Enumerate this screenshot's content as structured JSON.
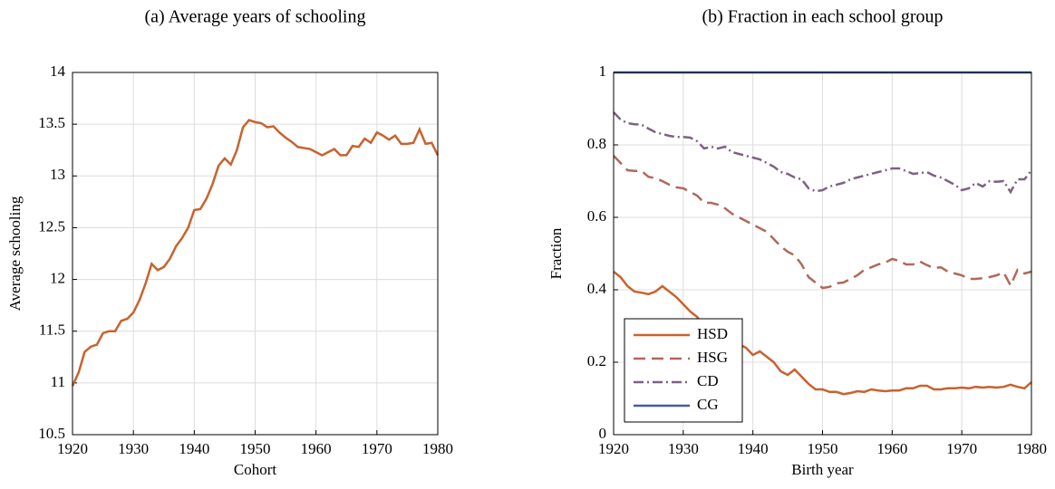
{
  "chart_data": [
    {
      "type": "line",
      "title": "(a) Average years of schooling",
      "xlabel": "Cohort",
      "ylabel": "Average schooling",
      "x": [
        1920,
        1921,
        1922,
        1923,
        1924,
        1925,
        1926,
        1927,
        1928,
        1929,
        1930,
        1931,
        1932,
        1933,
        1934,
        1935,
        1936,
        1937,
        1938,
        1939,
        1940,
        1941,
        1942,
        1943,
        1944,
        1945,
        1946,
        1947,
        1948,
        1949,
        1950,
        1951,
        1952,
        1953,
        1954,
        1955,
        1956,
        1957,
        1958,
        1959,
        1960,
        1961,
        1962,
        1963,
        1964,
        1965,
        1966,
        1967,
        1968,
        1969,
        1970,
        1971,
        1972,
        1973,
        1974,
        1975,
        1976,
        1977,
        1978,
        1979,
        1980
      ],
      "series": [
        {
          "color": "#c8622e",
          "dash": "solid",
          "values": [
            10.97,
            11.1,
            11.3,
            11.35,
            11.37,
            11.48,
            11.5,
            11.5,
            11.6,
            11.62,
            11.68,
            11.8,
            11.96,
            12.15,
            12.09,
            12.12,
            12.2,
            12.32,
            12.4,
            12.5,
            12.67,
            12.68,
            12.78,
            12.92,
            13.1,
            13.17,
            13.11,
            13.25,
            13.47,
            13.54,
            13.52,
            13.51,
            13.47,
            13.48,
            13.42,
            13.37,
            13.33,
            13.28,
            13.27,
            13.26,
            13.23,
            13.2,
            13.23,
            13.26,
            13.2,
            13.2,
            13.29,
            13.28,
            13.36,
            13.32,
            13.42,
            13.39,
            13.35,
            13.39,
            13.31,
            13.31,
            13.32,
            13.45,
            13.31,
            13.32,
            13.2
          ]
        }
      ],
      "xlim": [
        1920,
        1980
      ],
      "xticks": [
        1920,
        1930,
        1940,
        1950,
        1960,
        1970,
        1980
      ],
      "ylim": [
        10.5,
        14
      ],
      "yticks": [
        10.5,
        11,
        11.5,
        12,
        12.5,
        13,
        13.5,
        14
      ],
      "grid": true
    },
    {
      "type": "line",
      "title": "(b) Fraction in each school group",
      "xlabel": "Birth year",
      "ylabel": "Fraction",
      "x": [
        1920,
        1921,
        1922,
        1923,
        1924,
        1925,
        1926,
        1927,
        1928,
        1929,
        1930,
        1931,
        1932,
        1933,
        1934,
        1935,
        1936,
        1937,
        1938,
        1939,
        1940,
        1941,
        1942,
        1943,
        1944,
        1945,
        1946,
        1947,
        1948,
        1949,
        1950,
        1951,
        1952,
        1953,
        1954,
        1955,
        1956,
        1957,
        1958,
        1959,
        1960,
        1961,
        1962,
        1963,
        1964,
        1965,
        1966,
        1967,
        1968,
        1969,
        1970,
        1971,
        1972,
        1973,
        1974,
        1975,
        1976,
        1977,
        1978,
        1979,
        1980
      ],
      "series": [
        {
          "name": "HSD",
          "color": "#c8622e",
          "dash": "solid",
          "values": [
            0.45,
            0.435,
            0.41,
            0.395,
            0.392,
            0.388,
            0.395,
            0.41,
            0.395,
            0.38,
            0.36,
            0.34,
            0.325,
            0.3,
            0.3,
            0.295,
            0.29,
            0.27,
            0.25,
            0.24,
            0.22,
            0.23,
            0.215,
            0.2,
            0.175,
            0.165,
            0.18,
            0.16,
            0.14,
            0.125,
            0.125,
            0.118,
            0.118,
            0.112,
            0.115,
            0.12,
            0.118,
            0.125,
            0.122,
            0.12,
            0.122,
            0.122,
            0.128,
            0.128,
            0.135,
            0.135,
            0.125,
            0.125,
            0.128,
            0.128,
            0.13,
            0.128,
            0.132,
            0.13,
            0.132,
            0.13,
            0.132,
            0.138,
            0.132,
            0.128,
            0.145
          ]
        },
        {
          "name": "HSG",
          "color": "#b0695a",
          "dash": "dashed",
          "values": [
            0.77,
            0.75,
            0.73,
            0.728,
            0.728,
            0.712,
            0.708,
            0.7,
            0.69,
            0.683,
            0.68,
            0.67,
            0.66,
            0.64,
            0.64,
            0.635,
            0.625,
            0.61,
            0.6,
            0.59,
            0.58,
            0.57,
            0.56,
            0.54,
            0.52,
            0.505,
            0.495,
            0.47,
            0.435,
            0.42,
            0.405,
            0.408,
            0.418,
            0.42,
            0.43,
            0.44,
            0.455,
            0.462,
            0.47,
            0.475,
            0.485,
            0.48,
            0.47,
            0.47,
            0.478,
            0.468,
            0.46,
            0.462,
            0.45,
            0.445,
            0.44,
            0.43,
            0.43,
            0.432,
            0.435,
            0.44,
            0.448,
            0.412,
            0.455,
            0.445,
            0.45
          ]
        },
        {
          "name": "CD",
          "color": "#7d6282",
          "dash": "dashdot",
          "values": [
            0.89,
            0.87,
            0.86,
            0.857,
            0.856,
            0.845,
            0.835,
            0.83,
            0.825,
            0.822,
            0.822,
            0.82,
            0.81,
            0.79,
            0.795,
            0.79,
            0.795,
            0.78,
            0.775,
            0.77,
            0.765,
            0.76,
            0.75,
            0.74,
            0.725,
            0.72,
            0.71,
            0.705,
            0.68,
            0.672,
            0.675,
            0.685,
            0.69,
            0.695,
            0.705,
            0.71,
            0.715,
            0.72,
            0.725,
            0.73,
            0.735,
            0.735,
            0.728,
            0.72,
            0.722,
            0.725,
            0.715,
            0.71,
            0.7,
            0.69,
            0.675,
            0.68,
            0.695,
            0.685,
            0.7,
            0.698,
            0.7,
            0.67,
            0.705,
            0.705,
            0.73
          ]
        },
        {
          "name": "CG",
          "color": "#4a5aa8",
          "dash": "solid",
          "values": [
            1,
            1,
            1,
            1,
            1,
            1,
            1,
            1,
            1,
            1,
            1,
            1,
            1,
            1,
            1,
            1,
            1,
            1,
            1,
            1,
            1,
            1,
            1,
            1,
            1,
            1,
            1,
            1,
            1,
            1,
            1,
            1,
            1,
            1,
            1,
            1,
            1,
            1,
            1,
            1,
            1,
            1,
            1,
            1,
            1,
            1,
            1,
            1,
            1,
            1,
            1,
            1,
            1,
            1,
            1,
            1,
            1,
            1,
            1,
            1,
            1
          ]
        }
      ],
      "xlim": [
        1920,
        1980
      ],
      "xticks": [
        1920,
        1930,
        1940,
        1950,
        1960,
        1970,
        1980
      ],
      "ylim": [
        0,
        1
      ],
      "yticks": [
        0,
        0.2,
        0.4,
        0.6,
        0.8,
        1
      ],
      "grid": true,
      "legend": "lower left"
    }
  ]
}
